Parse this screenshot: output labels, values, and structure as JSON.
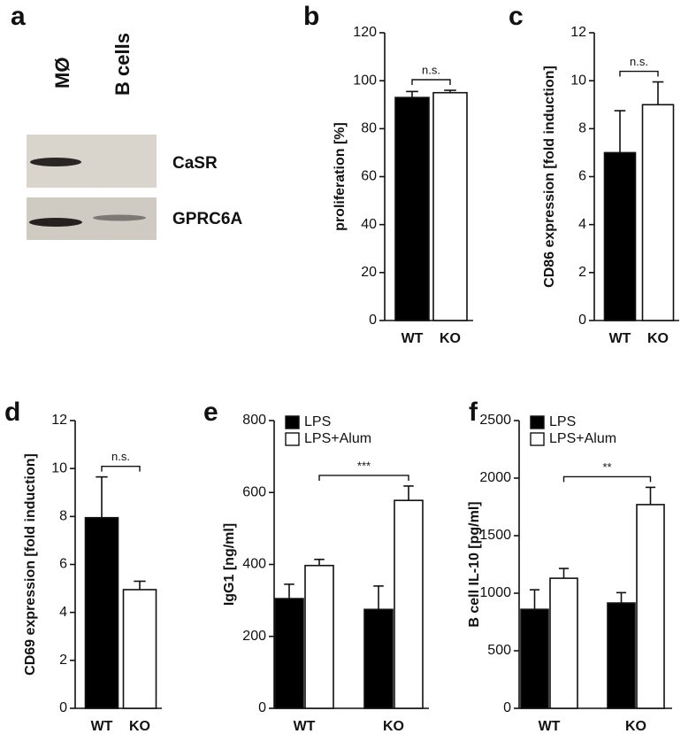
{
  "blot": {
    "panel": "a",
    "lanes": [
      "MØ",
      "B cells"
    ],
    "bands": [
      "CaSR",
      "GPRC6A"
    ]
  },
  "chart_data": [
    {
      "type": "bar",
      "panel": "b",
      "ylabel": "proliferation [%]",
      "categories": [
        "WT",
        "KO"
      ],
      "values": [
        93,
        95
      ],
      "errors": [
        2.5,
        1
      ],
      "colors": [
        "#000000",
        "#ffffff"
      ],
      "ylim": [
        0,
        120
      ],
      "yticks": [
        0,
        20,
        40,
        60,
        80,
        100,
        120
      ],
      "annotation": "n.s."
    },
    {
      "type": "bar",
      "panel": "c",
      "ylabel": "CD86 expression [fold induction]",
      "categories": [
        "WT",
        "KO"
      ],
      "values": [
        7.0,
        9.0
      ],
      "errors": [
        1.75,
        0.95
      ],
      "colors": [
        "#000000",
        "#ffffff"
      ],
      "ylim": [
        0,
        12
      ],
      "yticks": [
        0,
        2,
        4,
        6,
        8,
        10,
        12
      ],
      "annotation": "n.s."
    },
    {
      "type": "bar",
      "panel": "d",
      "ylabel": "CD69 expression [fold induction]",
      "categories": [
        "WT",
        "KO"
      ],
      "values": [
        7.95,
        4.95
      ],
      "errors": [
        1.7,
        0.35
      ],
      "colors": [
        "#000000",
        "#ffffff"
      ],
      "ylim": [
        0,
        12
      ],
      "yticks": [
        0,
        2,
        4,
        6,
        8,
        10,
        12
      ],
      "annotation": "n.s."
    },
    {
      "type": "bar",
      "panel": "e",
      "ylabel": "IgG1 [ng/ml]",
      "categories": [
        "WT",
        "KO"
      ],
      "series": [
        {
          "name": "LPS",
          "color": "#000000",
          "values": [
            305,
            275
          ],
          "errors": [
            40,
            65
          ]
        },
        {
          "name": "LPS+Alum",
          "color": "#ffffff",
          "values": [
            397,
            578
          ],
          "errors": [
            17,
            40
          ]
        }
      ],
      "ylim": [
        0,
        800
      ],
      "yticks": [
        0,
        200,
        400,
        600,
        800
      ],
      "annotation": "***"
    },
    {
      "type": "bar",
      "panel": "f",
      "ylabel": "B cell IL-10 [pg/ml]",
      "categories": [
        "WT",
        "KO"
      ],
      "series": [
        {
          "name": "LPS",
          "color": "#000000",
          "values": [
            860,
            915
          ],
          "errors": [
            170,
            90
          ]
        },
        {
          "name": "LPS+Alum",
          "color": "#ffffff",
          "values": [
            1130,
            1770
          ],
          "errors": [
            85,
            150
          ]
        }
      ],
      "ylim": [
        0,
        2500
      ],
      "yticks": [
        0,
        500,
        1000,
        1500,
        2000,
        2500
      ],
      "annotation": "**"
    }
  ]
}
